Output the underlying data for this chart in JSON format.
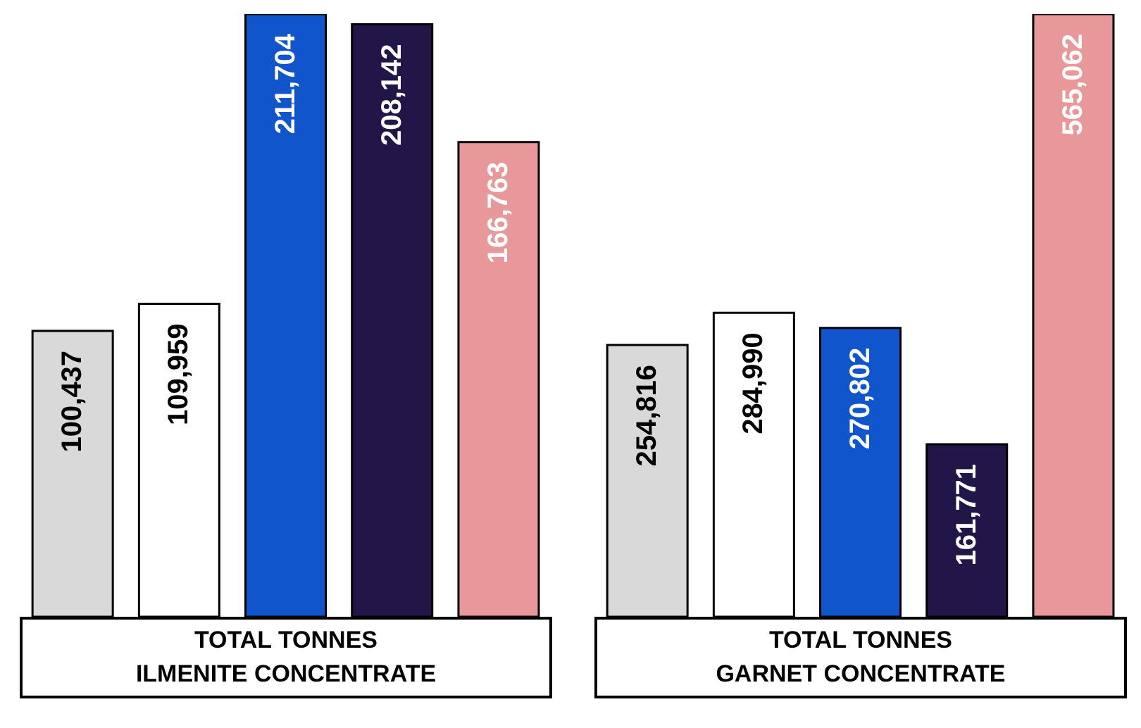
{
  "chart_data": [
    {
      "type": "bar",
      "xlabel": "TOTAL TONNES\nILMENITE CONCENTRATE",
      "categories": [
        null,
        null,
        null,
        null,
        null
      ],
      "values": [
        100437,
        109959,
        211704,
        208142,
        166763
      ],
      "value_labels": [
        "100,437",
        "109,959",
        "211,704",
        "208,142",
        "166,763"
      ],
      "colors": [
        "#d9d9d9",
        "#ffffff",
        "#1155cc",
        "#221547",
        "#e89898"
      ],
      "tick_labels": false,
      "grid": false,
      "legend": false
    },
    {
      "type": "bar",
      "xlabel": "TOTAL TONNES\nGARNET CONCENTRATE",
      "categories": [
        null,
        null,
        null,
        null,
        null
      ],
      "values": [
        254816,
        284990,
        270802,
        161771,
        565062
      ],
      "value_labels": [
        "254,816",
        "284,990",
        "270,802",
        "161,771",
        "565,062"
      ],
      "colors": [
        "#d9d9d9",
        "#ffffff",
        "#1155cc",
        "#221547",
        "#e89898"
      ],
      "tick_labels": false,
      "grid": false,
      "legend": false
    }
  ]
}
